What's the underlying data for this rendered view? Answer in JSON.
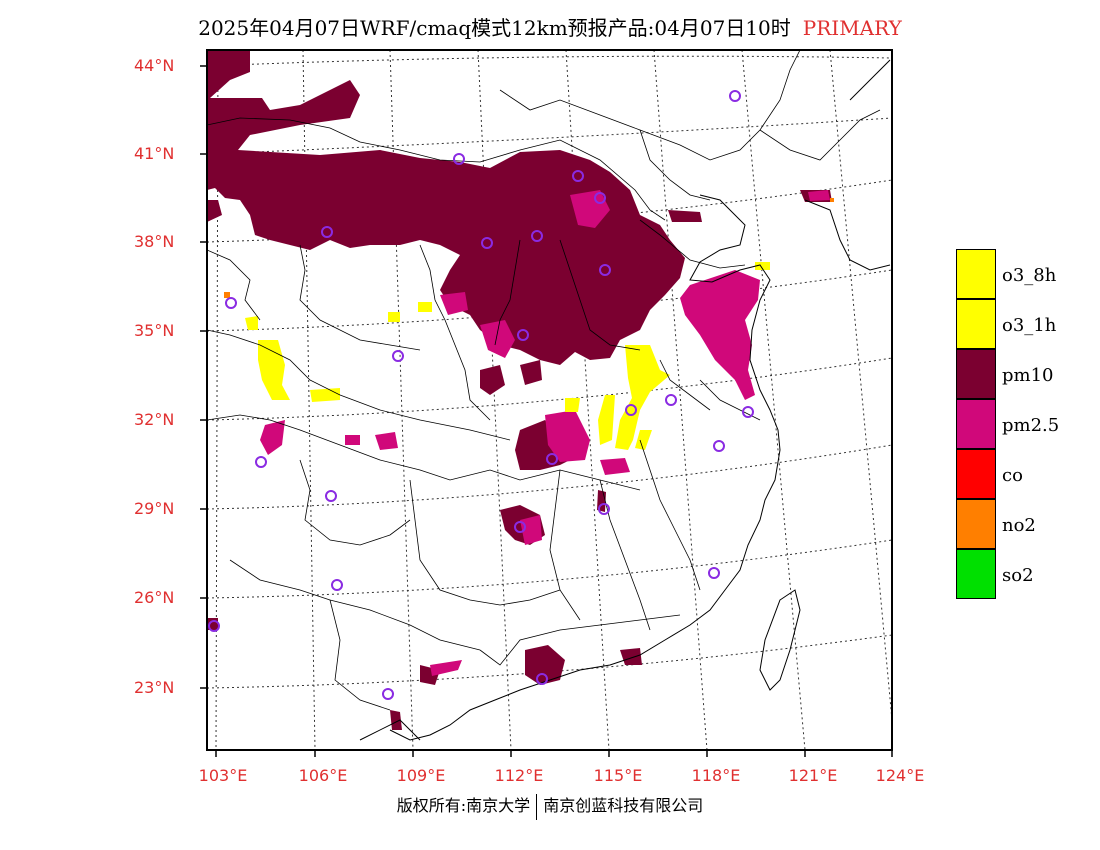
{
  "title": {
    "text": "2025年04月07日WRF/cmaq模式12km预报产品:04月07日10时",
    "tag": "PRIMARY"
  },
  "map": {
    "lat_labels": [
      "44°N",
      "41°N",
      "38°N",
      "35°N",
      "32°N",
      "29°N",
      "26°N",
      "23°N"
    ],
    "lon_labels": [
      "103°E",
      "106°E",
      "109°E",
      "112°E",
      "115°E",
      "118°E",
      "121°E",
      "124°E"
    ]
  },
  "legend": {
    "items": [
      {
        "label": "o3_8h",
        "color": "#ffff00"
      },
      {
        "label": "o3_1h",
        "color": "#ffff00"
      },
      {
        "label": "pm10",
        "color": "#7b0030"
      },
      {
        "label": "pm2.5",
        "color": "#d0087a"
      },
      {
        "label": "co",
        "color": "#ff0000"
      },
      {
        "label": "no2",
        "color": "#ff7f00"
      },
      {
        "label": "so2",
        "color": "#00e000"
      }
    ]
  },
  "colors": {
    "pm10": "#7b0030",
    "pm25": "#d0087a",
    "o3": "#ffff00",
    "no2": "#ff7f00",
    "stations": "#8a2be2",
    "axis_label": "#e03030"
  },
  "footer": {
    "left": "版权所有:南京大学",
    "right": "南京创蓝科技有限公司"
  }
}
